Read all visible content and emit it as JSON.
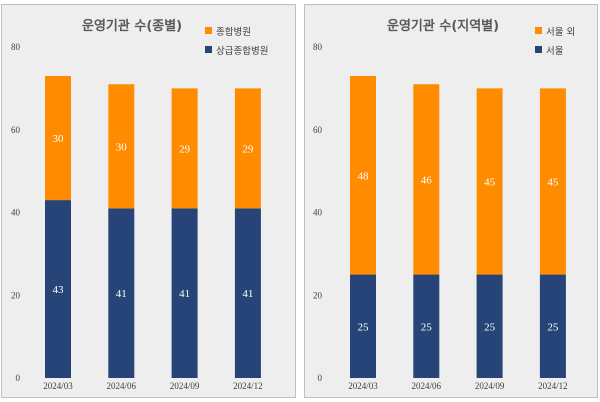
{
  "chart_data": [
    {
      "type": "bar",
      "stacked": true,
      "title": "운영기관 수(종별)",
      "categories": [
        "2024/03",
        "2024/06",
        "2024/09",
        "2024/12"
      ],
      "series": [
        {
          "name": "상급종합병원",
          "values": [
            43,
            41,
            41,
            41
          ],
          "color": "#264478"
        },
        {
          "name": "종합병원",
          "values": [
            30,
            30,
            29,
            29
          ],
          "color": "#ff8c00"
        }
      ],
      "legend_order": [
        1,
        0
      ],
      "legend_position": "top-right",
      "ylim": [
        0,
        80
      ],
      "yticks": [
        "0",
        "20",
        "40",
        "60",
        "80"
      ],
      "grid": false,
      "data_labels": true
    },
    {
      "type": "bar",
      "stacked": true,
      "title": "운영기관 수(지역별)",
      "categories": [
        "2024/03",
        "2024/06",
        "2024/09",
        "2024/12"
      ],
      "series": [
        {
          "name": "서울",
          "values": [
            25,
            25,
            25,
            25
          ],
          "color": "#264478"
        },
        {
          "name": "서울 외",
          "values": [
            48,
            46,
            45,
            45
          ],
          "color": "#ff8c00"
        }
      ],
      "legend_order": [
        1,
        0
      ],
      "legend_position": "top-right",
      "ylim": [
        0,
        80
      ],
      "yticks": [
        "0",
        "20",
        "40",
        "60",
        "80"
      ],
      "grid": false,
      "data_labels": true
    }
  ]
}
